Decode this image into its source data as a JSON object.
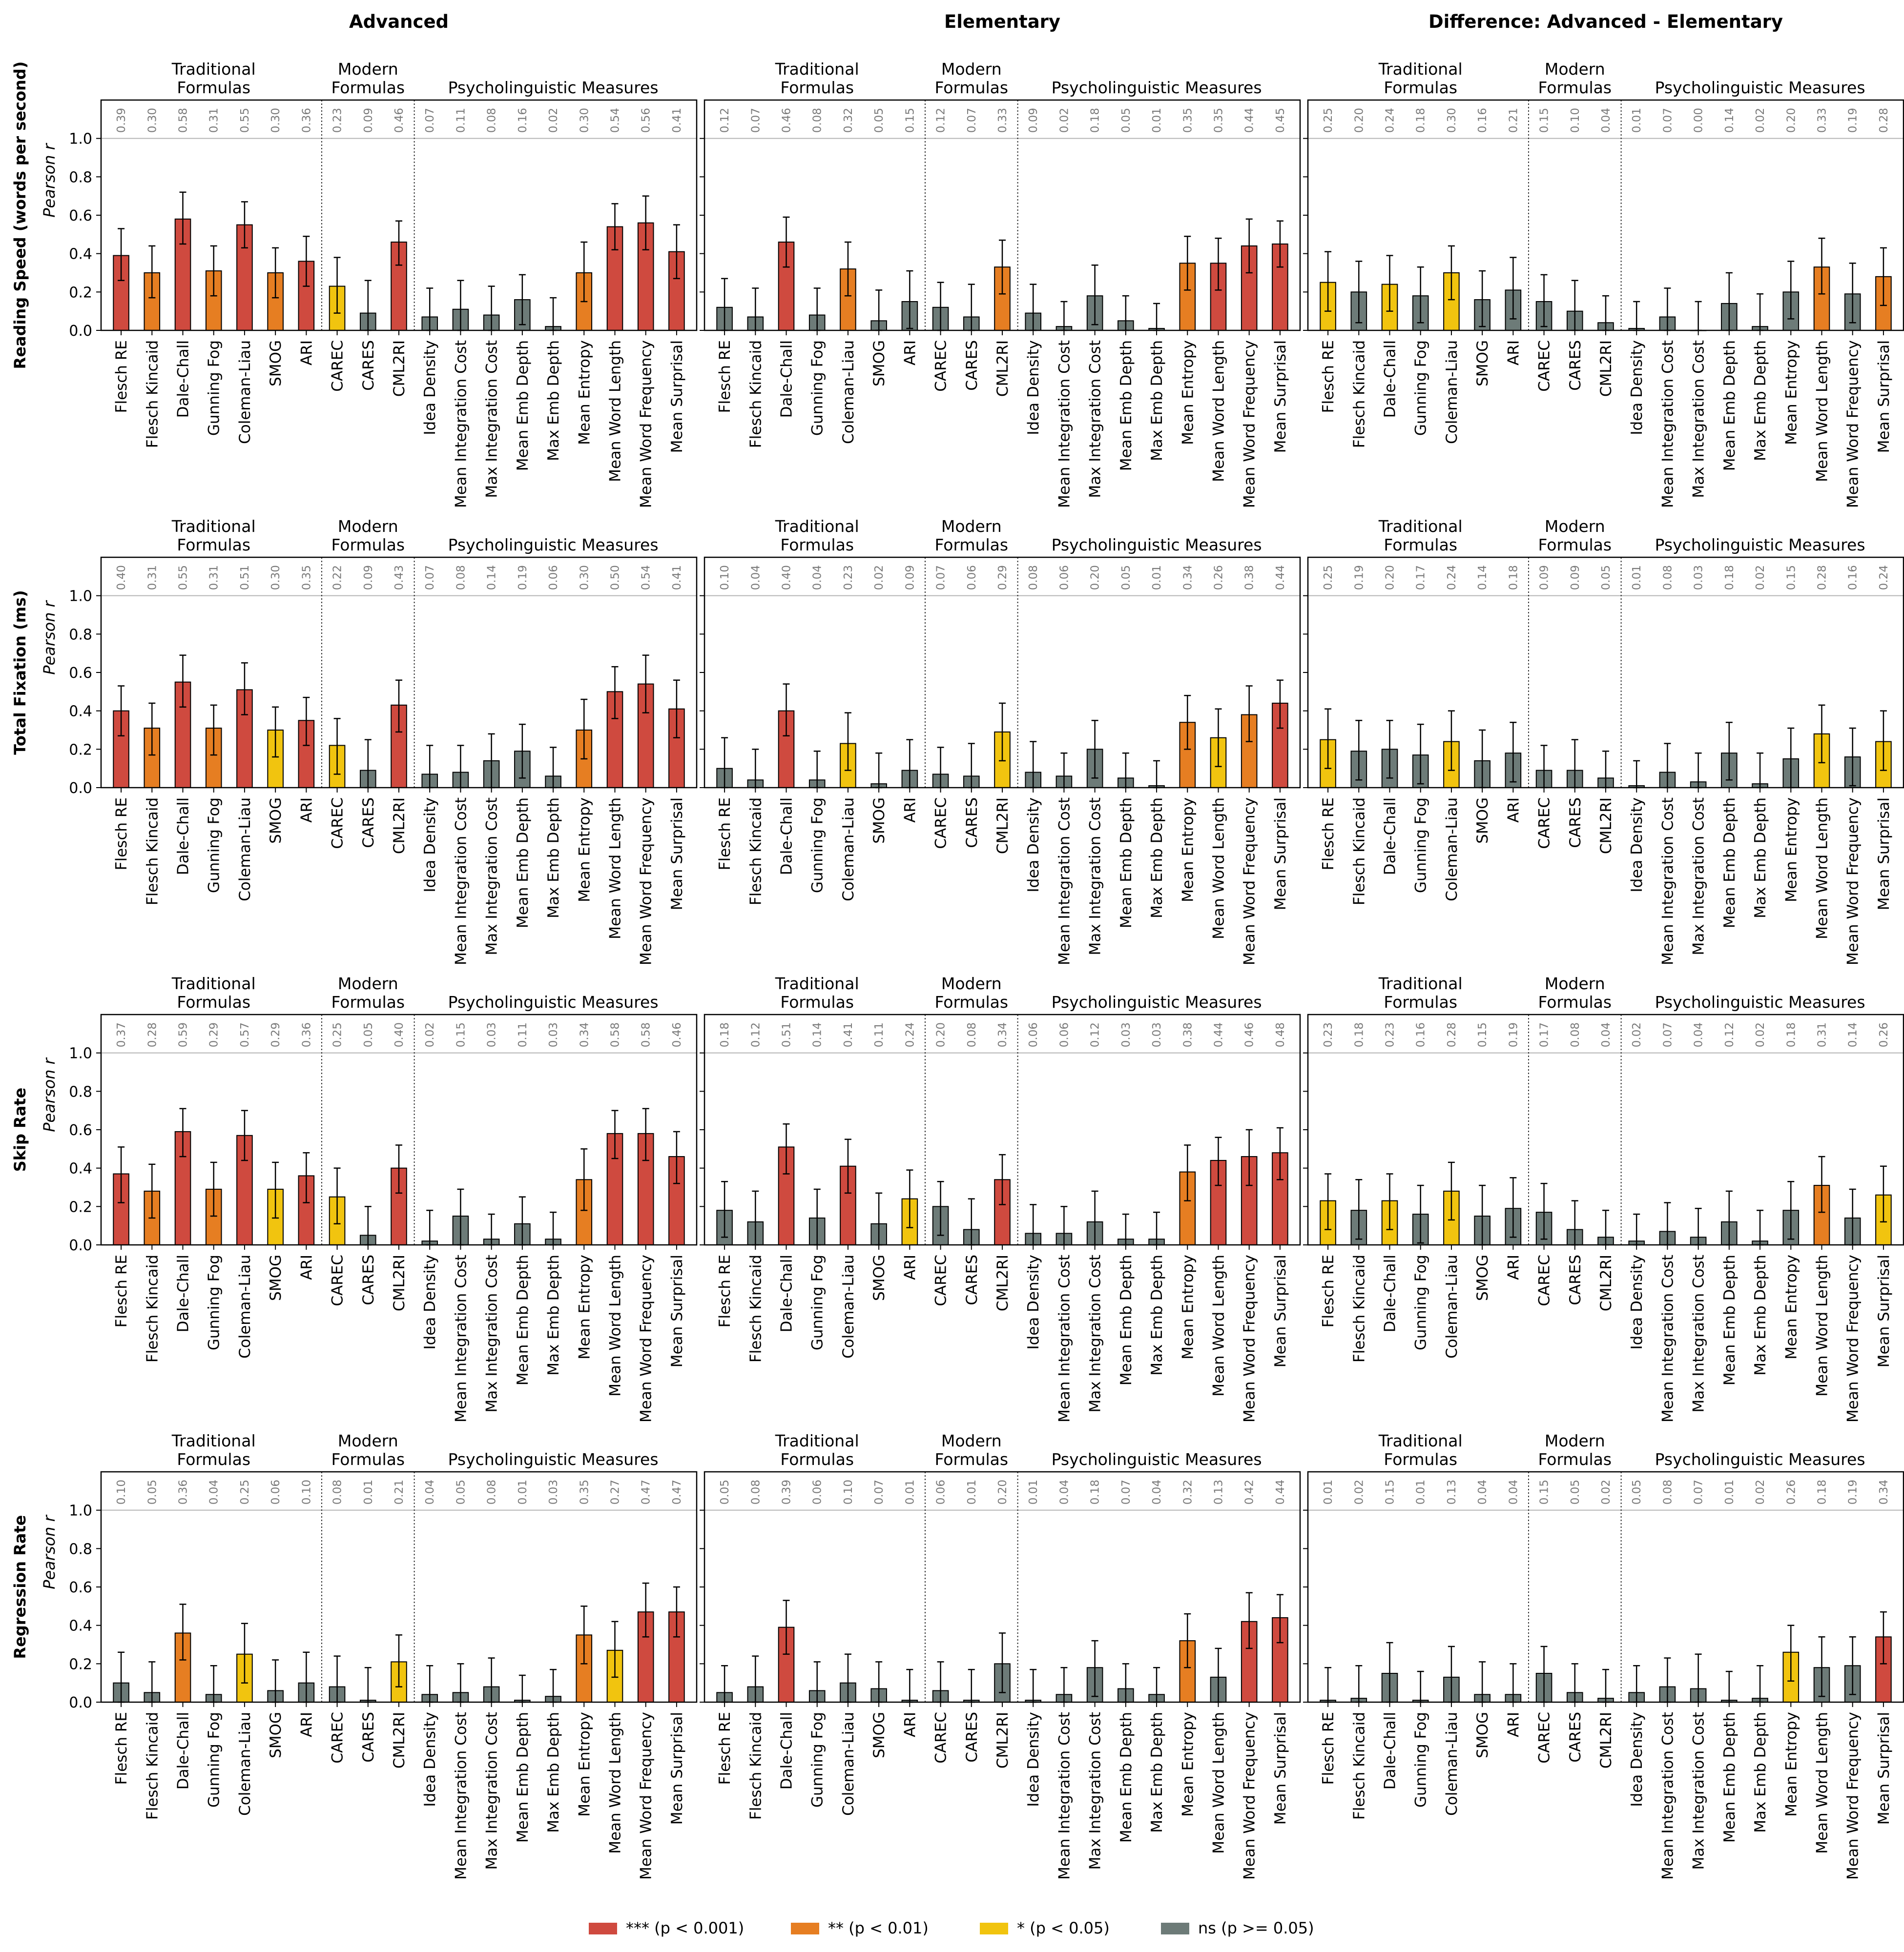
{
  "chart_data": {
    "type": "bar",
    "y_axis_label": "Pearson r",
    "ylim": [
      0,
      1.2
    ],
    "yticks": [
      "0.0",
      "0.2",
      "0.4",
      "0.6",
      "0.8",
      "1.0"
    ],
    "reference_line": 1.0,
    "columns": [
      "Advanced",
      "Elementary",
      "Difference: Advanced - Elementary"
    ],
    "rows": [
      "Reading Speed (words per second)",
      "Total Fixation (ms)",
      "Skip Rate",
      "Regression Rate"
    ],
    "groups": [
      {
        "label_line1": "Traditional",
        "label_line2": "Formulas"
      },
      {
        "label_line1": "Modern",
        "label_line2": "Formulas"
      },
      {
        "label_line1": "",
        "label_line2": "Psycholinguistic Measures"
      }
    ],
    "categories": [
      "Flesch RE",
      "Flesch Kincaid",
      "Dale-Chall",
      "Gunning Fog",
      "Coleman-Liau",
      "SMOG",
      "ARI",
      "CAREC",
      "CARES",
      "CML2RI",
      "Idea Density",
      "Mean Integration Cost",
      "Max Integration Cost",
      "Mean Emb Depth",
      "Max Emb Depth",
      "Mean Entropy",
      "Mean Word Length",
      "Mean Word Frequency",
      "Mean Surprisal"
    ],
    "legend": [
      {
        "label": "*** (p < 0.001)",
        "color": "#cf4a3f"
      },
      {
        "label": "** (p < 0.01)",
        "color": "#e67e22"
      },
      {
        "label": "* (p < 0.05)",
        "color": "#f1c40f"
      },
      {
        "label": "ns (p >= 0.05)",
        "color": "#6d7b78"
      }
    ],
    "panels": [
      {
        "row": 0,
        "col": 0,
        "values": [
          0.39,
          0.3,
          0.58,
          0.31,
          0.55,
          0.3,
          0.36,
          0.23,
          0.09,
          0.46,
          0.07,
          0.11,
          0.08,
          0.16,
          0.02,
          0.3,
          0.54,
          0.56,
          0.41
        ],
        "significance": [
          "***",
          "**",
          "***",
          "**",
          "***",
          "**",
          "***",
          "*",
          "ns",
          "***",
          "ns",
          "ns",
          "ns",
          "ns",
          "ns",
          "**",
          "***",
          "***",
          "***"
        ],
        "ci_low": [
          0.26,
          0.17,
          0.45,
          0.18,
          0.43,
          0.17,
          0.23,
          0.09,
          0,
          0.34,
          0,
          0,
          0,
          0.03,
          0,
          0.15,
          0.42,
          0.42,
          0.27
        ],
        "ci_high": [
          0.53,
          0.44,
          0.72,
          0.44,
          0.67,
          0.43,
          0.49,
          0.38,
          0.26,
          0.57,
          0.22,
          0.26,
          0.23,
          0.29,
          0.17,
          0.46,
          0.66,
          0.7,
          0.55
        ]
      },
      {
        "row": 0,
        "col": 1,
        "values": [
          0.12,
          0.07,
          0.46,
          0.08,
          0.32,
          0.05,
          0.15,
          0.12,
          0.07,
          0.33,
          0.09,
          0.02,
          0.18,
          0.05,
          0.01,
          0.35,
          0.35,
          0.44,
          0.45
        ],
        "significance": [
          "ns",
          "ns",
          "***",
          "ns",
          "**",
          "ns",
          "ns",
          "ns",
          "ns",
          "**",
          "ns",
          "ns",
          "ns",
          "ns",
          "ns",
          "**",
          "***",
          "***",
          "***"
        ],
        "ci_low": [
          0,
          0,
          0.33,
          0,
          0.18,
          0,
          0.01,
          0,
          0,
          0.19,
          0,
          0,
          0.03,
          0,
          0,
          0.21,
          0.21,
          0.3,
          0.33
        ],
        "ci_high": [
          0.27,
          0.22,
          0.59,
          0.22,
          0.46,
          0.21,
          0.31,
          0.25,
          0.24,
          0.47,
          0.24,
          0.15,
          0.34,
          0.18,
          0.14,
          0.49,
          0.48,
          0.58,
          0.57
        ]
      },
      {
        "row": 0,
        "col": 2,
        "values": [
          0.25,
          0.2,
          0.24,
          0.18,
          0.3,
          0.16,
          0.21,
          0.15,
          0.1,
          0.04,
          0.01,
          0.07,
          0.0,
          0.14,
          0.02,
          0.2,
          0.33,
          0.19,
          0.28
        ],
        "significance": [
          "*",
          "ns",
          "*",
          "ns",
          "*",
          "ns",
          "ns",
          "ns",
          "ns",
          "ns",
          "ns",
          "ns",
          "ns",
          "ns",
          "ns",
          "ns",
          "**",
          "ns",
          "**"
        ],
        "ci_low": [
          0.1,
          0.04,
          0.1,
          0.04,
          0.16,
          0.02,
          0.06,
          0.02,
          0,
          0,
          0,
          0,
          0,
          0,
          0,
          0.06,
          0.19,
          0.04,
          0.13
        ],
        "ci_high": [
          0.41,
          0.36,
          0.39,
          0.33,
          0.44,
          0.31,
          0.38,
          0.29,
          0.26,
          0.18,
          0.15,
          0.22,
          0.15,
          0.3,
          0.19,
          0.36,
          0.48,
          0.35,
          0.43
        ]
      },
      {
        "row": 1,
        "col": 0,
        "values": [
          0.4,
          0.31,
          0.55,
          0.31,
          0.51,
          0.3,
          0.35,
          0.22,
          0.09,
          0.43,
          0.07,
          0.08,
          0.14,
          0.19,
          0.06,
          0.3,
          0.5,
          0.54,
          0.41
        ],
        "significance": [
          "***",
          "**",
          "***",
          "**",
          "***",
          "*",
          "***",
          "*",
          "ns",
          "***",
          "ns",
          "ns",
          "ns",
          "ns",
          "ns",
          "**",
          "***",
          "***",
          "***"
        ],
        "ci_low": [
          0.27,
          0.17,
          0.42,
          0.17,
          0.38,
          0.16,
          0.22,
          0.07,
          0,
          0.29,
          0,
          0,
          0,
          0.05,
          0,
          0.15,
          0.36,
          0.39,
          0.26
        ],
        "ci_high": [
          0.53,
          0.44,
          0.69,
          0.43,
          0.65,
          0.42,
          0.47,
          0.36,
          0.25,
          0.56,
          0.22,
          0.22,
          0.28,
          0.33,
          0.21,
          0.46,
          0.63,
          0.69,
          0.56
        ]
      },
      {
        "row": 1,
        "col": 1,
        "values": [
          0.1,
          0.04,
          0.4,
          0.04,
          0.23,
          0.02,
          0.09,
          0.07,
          0.06,
          0.29,
          0.08,
          0.06,
          0.2,
          0.05,
          0.01,
          0.34,
          0.26,
          0.38,
          0.44
        ],
        "significance": [
          "ns",
          "ns",
          "***",
          "ns",
          "*",
          "ns",
          "ns",
          "ns",
          "ns",
          "*",
          "ns",
          "ns",
          "ns",
          "ns",
          "ns",
          "**",
          "*",
          "**",
          "***"
        ],
        "ci_low": [
          0,
          0,
          0.27,
          0,
          0.09,
          0,
          0,
          0,
          0,
          0.14,
          0,
          0,
          0.05,
          0,
          0,
          0.2,
          0.11,
          0.24,
          0.31
        ],
        "ci_high": [
          0.26,
          0.2,
          0.54,
          0.19,
          0.39,
          0.18,
          0.25,
          0.21,
          0.23,
          0.44,
          0.24,
          0.18,
          0.35,
          0.18,
          0.14,
          0.48,
          0.41,
          0.53,
          0.56
        ]
      },
      {
        "row": 1,
        "col": 2,
        "values": [
          0.25,
          0.19,
          0.2,
          0.17,
          0.24,
          0.14,
          0.18,
          0.09,
          0.09,
          0.05,
          0.01,
          0.08,
          0.03,
          0.18,
          0.02,
          0.15,
          0.28,
          0.16,
          0.24
        ],
        "significance": [
          "*",
          "ns",
          "ns",
          "ns",
          "*",
          "ns",
          "ns",
          "ns",
          "ns",
          "ns",
          "ns",
          "ns",
          "ns",
          "ns",
          "ns",
          "ns",
          "*",
          "ns",
          "*"
        ],
        "ci_low": [
          0.1,
          0.04,
          0.05,
          0.02,
          0.09,
          0,
          0.03,
          0,
          0,
          0,
          0,
          0,
          0,
          0.04,
          0,
          0,
          0.13,
          0.01,
          0.09
        ],
        "ci_high": [
          0.41,
          0.35,
          0.35,
          0.33,
          0.4,
          0.3,
          0.34,
          0.22,
          0.25,
          0.19,
          0.14,
          0.23,
          0.18,
          0.34,
          0.18,
          0.31,
          0.43,
          0.31,
          0.4
        ]
      },
      {
        "row": 2,
        "col": 0,
        "values": [
          0.37,
          0.28,
          0.59,
          0.29,
          0.57,
          0.29,
          0.36,
          0.25,
          0.05,
          0.4,
          0.02,
          0.15,
          0.03,
          0.11,
          0.03,
          0.34,
          0.58,
          0.58,
          0.46
        ],
        "significance": [
          "***",
          "**",
          "***",
          "**",
          "***",
          "*",
          "***",
          "*",
          "ns",
          "***",
          "ns",
          "ns",
          "ns",
          "ns",
          "ns",
          "**",
          "***",
          "***",
          "***"
        ],
        "ci_low": [
          0.22,
          0.14,
          0.46,
          0.15,
          0.44,
          0.14,
          0.22,
          0.11,
          0,
          0.27,
          0,
          0,
          0,
          0,
          0,
          0.18,
          0.45,
          0.44,
          0.32
        ],
        "ci_high": [
          0.51,
          0.42,
          0.71,
          0.43,
          0.7,
          0.43,
          0.48,
          0.4,
          0.2,
          0.52,
          0.18,
          0.29,
          0.16,
          0.25,
          0.17,
          0.5,
          0.7,
          0.71,
          0.59
        ]
      },
      {
        "row": 2,
        "col": 1,
        "values": [
          0.18,
          0.12,
          0.51,
          0.14,
          0.41,
          0.11,
          0.24,
          0.2,
          0.08,
          0.34,
          0.06,
          0.06,
          0.12,
          0.03,
          0.03,
          0.38,
          0.44,
          0.46,
          0.48
        ],
        "significance": [
          "ns",
          "ns",
          "***",
          "ns",
          "***",
          "ns",
          "*",
          "ns",
          "ns",
          "***",
          "ns",
          "ns",
          "ns",
          "ns",
          "ns",
          "**",
          "***",
          "***",
          "***"
        ],
        "ci_low": [
          0.04,
          0,
          0.37,
          0,
          0.27,
          0,
          0.09,
          0.05,
          0,
          0.21,
          0,
          0,
          0,
          0,
          0,
          0.23,
          0.31,
          0.31,
          0.34
        ],
        "ci_high": [
          0.33,
          0.28,
          0.63,
          0.29,
          0.55,
          0.27,
          0.39,
          0.33,
          0.24,
          0.47,
          0.21,
          0.2,
          0.28,
          0.16,
          0.17,
          0.52,
          0.56,
          0.6,
          0.61
        ]
      },
      {
        "row": 2,
        "col": 2,
        "values": [
          0.23,
          0.18,
          0.23,
          0.16,
          0.28,
          0.15,
          0.19,
          0.17,
          0.08,
          0.04,
          0.02,
          0.07,
          0.04,
          0.12,
          0.02,
          0.18,
          0.31,
          0.14,
          0.26
        ],
        "significance": [
          "*",
          "ns",
          "*",
          "ns",
          "*",
          "ns",
          "ns",
          "ns",
          "ns",
          "ns",
          "ns",
          "ns",
          "ns",
          "ns",
          "ns",
          "ns",
          "**",
          "ns",
          "*"
        ],
        "ci_low": [
          0.08,
          0.03,
          0.08,
          0.01,
          0.13,
          0,
          0.04,
          0.03,
          0,
          0,
          0,
          0,
          0,
          0,
          0,
          0.03,
          0.17,
          0,
          0.12
        ],
        "ci_high": [
          0.37,
          0.34,
          0.37,
          0.31,
          0.43,
          0.31,
          0.35,
          0.32,
          0.23,
          0.18,
          0.16,
          0.22,
          0.19,
          0.28,
          0.18,
          0.33,
          0.46,
          0.29,
          0.41
        ]
      },
      {
        "row": 3,
        "col": 0,
        "values": [
          0.1,
          0.05,
          0.36,
          0.04,
          0.25,
          0.06,
          0.1,
          0.08,
          0.01,
          0.21,
          0.04,
          0.05,
          0.08,
          0.01,
          0.03,
          0.35,
          0.27,
          0.47,
          0.47
        ],
        "significance": [
          "ns",
          "ns",
          "**",
          "ns",
          "*",
          "ns",
          "ns",
          "ns",
          "ns",
          "*",
          "ns",
          "ns",
          "ns",
          "ns",
          "ns",
          "**",
          "*",
          "***",
          "***"
        ],
        "ci_low": [
          0,
          0,
          0.22,
          0,
          0.1,
          0,
          0,
          0,
          0,
          0.08,
          0,
          0,
          0,
          0,
          0,
          0.2,
          0.13,
          0.34,
          0.34
        ],
        "ci_high": [
          0.26,
          0.21,
          0.51,
          0.19,
          0.41,
          0.22,
          0.26,
          0.24,
          0.18,
          0.35,
          0.19,
          0.2,
          0.23,
          0.14,
          0.17,
          0.5,
          0.42,
          0.62,
          0.6
        ]
      },
      {
        "row": 3,
        "col": 1,
        "values": [
          0.05,
          0.08,
          0.39,
          0.06,
          0.1,
          0.07,
          0.01,
          0.06,
          0.01,
          0.2,
          0.01,
          0.04,
          0.18,
          0.07,
          0.04,
          0.32,
          0.13,
          0.42,
          0.44
        ],
        "significance": [
          "ns",
          "ns",
          "***",
          "ns",
          "ns",
          "ns",
          "ns",
          "ns",
          "ns",
          "ns",
          "ns",
          "ns",
          "ns",
          "ns",
          "ns",
          "**",
          "ns",
          "***",
          "***"
        ],
        "ci_low": [
          0,
          0,
          0.25,
          0,
          0,
          0,
          0,
          0,
          0,
          0.05,
          0,
          0,
          0.03,
          0,
          0,
          0.18,
          0,
          0.28,
          0.31
        ],
        "ci_high": [
          0.19,
          0.24,
          0.53,
          0.21,
          0.25,
          0.21,
          0.17,
          0.21,
          0.17,
          0.36,
          0.17,
          0.18,
          0.32,
          0.2,
          0.18,
          0.46,
          0.28,
          0.57,
          0.56
        ]
      },
      {
        "row": 3,
        "col": 2,
        "values": [
          0.01,
          0.02,
          0.15,
          0.01,
          0.13,
          0.04,
          0.04,
          0.15,
          0.05,
          0.02,
          0.05,
          0.08,
          0.07,
          0.01,
          0.02,
          0.26,
          0.18,
          0.19,
          0.34
        ],
        "significance": [
          "ns",
          "ns",
          "ns",
          "ns",
          "ns",
          "ns",
          "ns",
          "ns",
          "ns",
          "ns",
          "ns",
          "ns",
          "ns",
          "ns",
          "ns",
          "*",
          "ns",
          "ns",
          "***"
        ],
        "ci_low": [
          0,
          0,
          0,
          0,
          0,
          0,
          0,
          0,
          0,
          0,
          0,
          0,
          0,
          0,
          0,
          0.11,
          0.03,
          0.04,
          0.2
        ],
        "ci_high": [
          0.18,
          0.19,
          0.31,
          0.16,
          0.29,
          0.21,
          0.2,
          0.29,
          0.2,
          0.17,
          0.19,
          0.23,
          0.25,
          0.16,
          0.19,
          0.4,
          0.34,
          0.34,
          0.47
        ]
      }
    ]
  }
}
